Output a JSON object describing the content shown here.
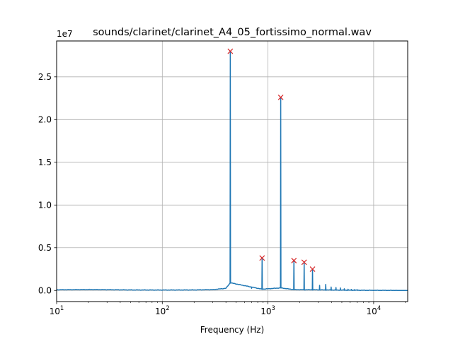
{
  "chart_data": {
    "type": "line",
    "title": "sounds/clarinet/clarinet_A4_05_fortissimo_normal.wav",
    "xlabel": "Frequency (Hz)",
    "ylabel": "",
    "xscale": "log",
    "xlim": [
      10,
      21000
    ],
    "ylim": [
      -1300000,
      29200000
    ],
    "y_offset_label": "1e7",
    "grid": true,
    "x_ticks": [
      {
        "value": 10,
        "base": "10",
        "exp": "1"
      },
      {
        "value": 100,
        "base": "10",
        "exp": "2"
      },
      {
        "value": 1000,
        "base": "10",
        "exp": "3"
      },
      {
        "value": 10000,
        "base": "10",
        "exp": "4"
      }
    ],
    "y_ticks": [
      {
        "value": 0,
        "label": "0.0"
      },
      {
        "value": 5000000,
        "label": "0.5"
      },
      {
        "value": 10000000,
        "label": "1.0"
      },
      {
        "value": 15000000,
        "label": "1.5"
      },
      {
        "value": 20000000,
        "label": "2.0"
      },
      {
        "value": 25000000,
        "label": "2.5"
      }
    ],
    "series": [
      {
        "style": "line",
        "color": "#1f77b4",
        "baseline_x": [
          10,
          20,
          30,
          50,
          100,
          200,
          300,
          400,
          440,
          880,
          1320,
          1760,
          2200,
          2640,
          3500,
          5000,
          8000,
          12000,
          16000,
          21000
        ],
        "baseline_y": [
          80000,
          110000,
          90000,
          60000,
          50000,
          60000,
          100000,
          250000,
          900000,
          150000,
          300000,
          100000,
          80000,
          80000,
          60000,
          40000,
          20000,
          10000,
          5000,
          0
        ],
        "peaks": [
          {
            "x": 440,
            "y": 28000000
          },
          {
            "x": 880,
            "y": 3800000
          },
          {
            "x": 1320,
            "y": 22600000
          },
          {
            "x": 1760,
            "y": 3500000
          },
          {
            "x": 2200,
            "y": 3300000
          },
          {
            "x": 2640,
            "y": 2500000
          },
          {
            "x": 3080,
            "y": 600000
          },
          {
            "x": 3520,
            "y": 700000
          },
          {
            "x": 3960,
            "y": 400000
          },
          {
            "x": 4400,
            "y": 350000
          },
          {
            "x": 4840,
            "y": 300000
          },
          {
            "x": 5280,
            "y": 200000
          },
          {
            "x": 5720,
            "y": 150000
          },
          {
            "x": 6160,
            "y": 120000
          },
          {
            "x": 6600,
            "y": 100000
          },
          {
            "x": 7040,
            "y": 80000
          },
          {
            "x": 700,
            "y": 250000
          }
        ]
      },
      {
        "style": "marker",
        "marker": "x",
        "color": "#d62728",
        "x": [
          440,
          880,
          1320,
          1760,
          2200,
          2640
        ],
        "y": [
          28000000,
          3800000,
          22600000,
          3500000,
          3300000,
          2500000
        ]
      }
    ]
  }
}
